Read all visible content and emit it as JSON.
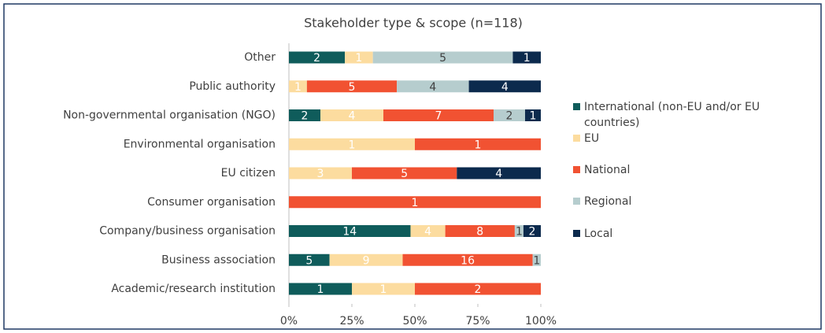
{
  "chart_data": {
    "type": "bar",
    "orientation": "horizontal",
    "stacked": "percent",
    "title": "Stakeholder type & scope  (n=118)",
    "categories": [
      "Other",
      "Public authority",
      "Non-governmental organisation (NGO)",
      "Environmental organisation",
      "EU citizen",
      "Consumer organisation",
      "Company/business organisation",
      "Business association",
      "Academic/research institution"
    ],
    "series": [
      {
        "name": "International (non-EU and/or EU countries)",
        "color": "#0f5c5b",
        "values": [
          2,
          null,
          2,
          null,
          null,
          null,
          14,
          5,
          1
        ]
      },
      {
        "name": "EU",
        "color": "#fcdc9f",
        "values": [
          1,
          1,
          4,
          1,
          3,
          null,
          4,
          9,
          1
        ]
      },
      {
        "name": "National",
        "color": "#f15232",
        "values": [
          null,
          5,
          7,
          1,
          5,
          1,
          8,
          16,
          2
        ]
      },
      {
        "name": "Regional",
        "color": "#b6cdce",
        "values": [
          5,
          4,
          2,
          null,
          null,
          null,
          1,
          1,
          null
        ]
      },
      {
        "name": "Local",
        "color": "#0c2a4d",
        "values": [
          1,
          4,
          1,
          null,
          4,
          null,
          2,
          null,
          null
        ]
      }
    ],
    "xlim": [
      0,
      100
    ],
    "xticks": [
      {
        "value": 0,
        "label": "0%"
      },
      {
        "value": 25,
        "label": "25%"
      },
      {
        "value": 50,
        "label": "50%"
      },
      {
        "value": 75,
        "label": "75%"
      },
      {
        "value": 100,
        "label": "100%"
      }
    ],
    "legend": "right"
  }
}
